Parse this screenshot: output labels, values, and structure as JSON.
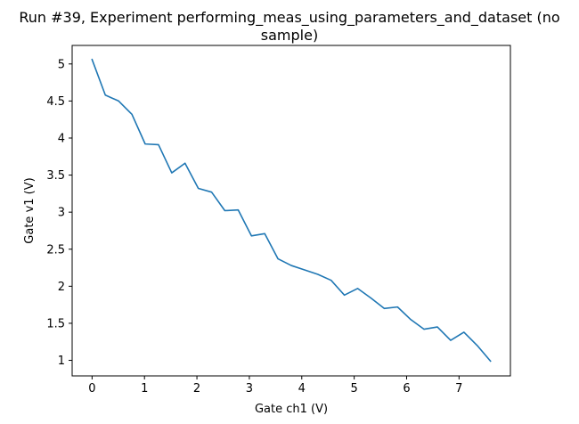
{
  "chart_data": {
    "type": "line",
    "title_lines": [
      "Run #39, Experiment performing_meas_using_parameters_and_dataset (no",
      "sample)"
    ],
    "xlabel": "Gate ch1 (V)",
    "ylabel": "Gate v1 (V)",
    "xlim": [
      -0.38,
      7.98
    ],
    "ylim": [
      0.79,
      5.25
    ],
    "xticks": [
      0,
      1,
      2,
      3,
      4,
      5,
      6,
      7
    ],
    "xtick_labels": [
      "0",
      "1",
      "2",
      "3",
      "4",
      "5",
      "6",
      "7"
    ],
    "yticks": [
      1,
      1.5,
      2,
      2.5,
      3,
      3.5,
      4,
      4.5,
      5
    ],
    "ytick_labels": [
      "1",
      "1.5",
      "2",
      "2.5",
      "3",
      "3.5",
      "4",
      "4.5",
      "5"
    ],
    "grid": false,
    "line_color": "#1f77b4",
    "series": [
      {
        "x": [
          0.0,
          0.253,
          0.507,
          0.76,
          1.013,
          1.267,
          1.52,
          1.773,
          2.027,
          2.28,
          2.533,
          2.787,
          3.04,
          3.293,
          3.547,
          3.8,
          4.053,
          4.307,
          4.56,
          4.813,
          5.067,
          5.32,
          5.573,
          5.827,
          6.08,
          6.333,
          6.587,
          6.84,
          7.093,
          7.347,
          7.6
        ],
        "y": [
          5.06,
          4.58,
          4.5,
          4.32,
          3.92,
          3.91,
          3.53,
          3.66,
          3.32,
          3.27,
          3.02,
          3.03,
          2.68,
          2.71,
          2.37,
          2.28,
          2.22,
          2.16,
          2.08,
          1.88,
          1.97,
          1.84,
          1.7,
          1.72,
          1.55,
          1.42,
          1.45,
          1.27,
          1.38,
          1.2,
          0.99
        ]
      }
    ]
  }
}
